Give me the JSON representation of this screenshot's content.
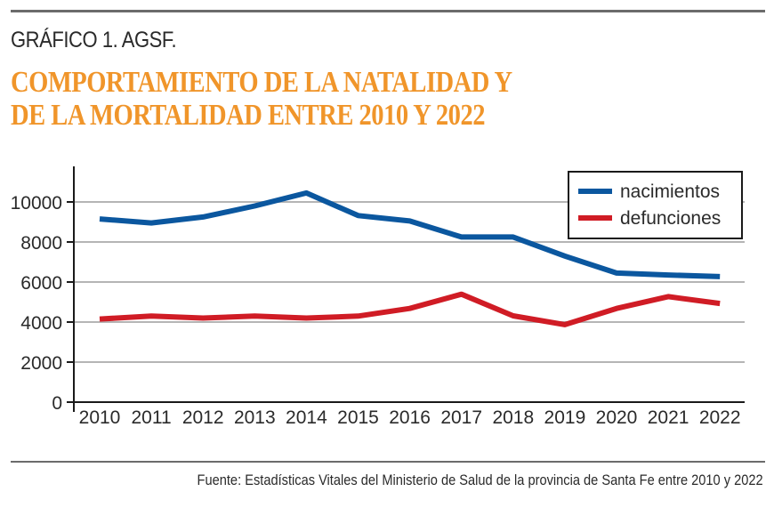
{
  "header": {
    "kicker": "GRÁFICO 1. AGSF.",
    "title_line1": "COMPORTAMIENTO DE LA NATALIDAD Y",
    "title_line2": "DE LA MORTALIDAD ENTRE 2010 Y 2022"
  },
  "footer": {
    "source": "Fuente: Estadísticas Vitales del Ministerio de Salud de la provincia de Santa Fe entre 2010 y 2022"
  },
  "colors": {
    "title": "#f0952a",
    "nacimientos": "#0b579f",
    "defunciones": "#d01c25"
  },
  "chart_data": {
    "type": "line",
    "title": "COMPORTAMIENTO DE LA NATALIDAD Y DE LA MORTALIDAD ENTRE 2010 Y 2022",
    "xlabel": "",
    "ylabel": "",
    "x": [
      "2010",
      "2011",
      "2012",
      "2013",
      "2014",
      "2015",
      "2016",
      "2017",
      "2018",
      "2019",
      "2020",
      "2021",
      "2022"
    ],
    "ylim": [
      0,
      10000
    ],
    "yticks": [
      "0",
      "2000",
      "4000",
      "6000",
      "8000",
      "10000"
    ],
    "ytick_values": [
      0,
      2000,
      4000,
      6000,
      8000,
      10000
    ],
    "grid": "horizontal",
    "legend_position": "top-right",
    "series": [
      {
        "name": "nacimientos",
        "color": "#0b579f",
        "values": [
          9150,
          8950,
          9250,
          9800,
          10450,
          9320,
          9050,
          8250,
          8250,
          7300,
          6450,
          6350,
          6270
        ]
      },
      {
        "name": "defunciones",
        "color": "#d01c25",
        "values": [
          4150,
          4300,
          4200,
          4300,
          4200,
          4300,
          4680,
          5390,
          4310,
          3870,
          4680,
          5270,
          4930
        ]
      }
    ]
  }
}
